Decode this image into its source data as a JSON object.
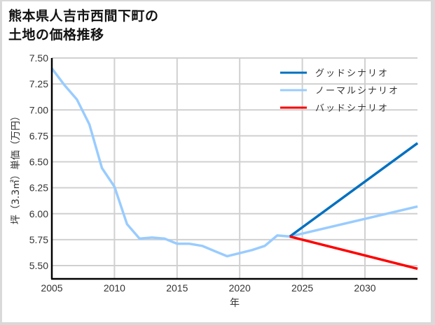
{
  "title_line1": "熊本県人吉市西間下町の",
  "title_line2": "土地の価格推移",
  "chart_data": {
    "type": "line",
    "title": "熊本県人吉市西間下町の土地の価格推移",
    "xlabel": "年",
    "ylabel": "坪（3.3㎡）単価（万円）",
    "xlim": [
      2005,
      2034.2
    ],
    "ylim": [
      5.37,
      7.5
    ],
    "grid": true,
    "legend_position": "upper right",
    "x_ticks": [
      "2005",
      "2010",
      "2015",
      "2020",
      "2025",
      "2030"
    ],
    "y_ticks": [
      "7.50",
      "7.25",
      "7.00",
      "6.75",
      "6.50",
      "6.25",
      "6.00",
      "5.75",
      "5.50"
    ],
    "series": [
      {
        "name": "ノーマルシナリオ",
        "color": "#99ccff",
        "x": [
          2005,
          2006,
          2007,
          2008,
          2009,
          2010,
          2011,
          2012,
          2013,
          2014,
          2015,
          2016,
          2017,
          2018,
          2019,
          2020,
          2021,
          2022,
          2023,
          2024,
          2034.2
        ],
        "values": [
          7.4,
          7.24,
          7.1,
          6.86,
          6.44,
          6.26,
          5.9,
          5.76,
          5.77,
          5.76,
          5.71,
          5.71,
          5.69,
          5.64,
          5.59,
          5.62,
          5.65,
          5.69,
          5.79,
          5.78,
          6.07
        ]
      },
      {
        "name": "グッドシナリオ",
        "color": "#0070c0",
        "x": [
          2024,
          2034.2
        ],
        "values": [
          5.78,
          6.68
        ]
      },
      {
        "name": "バッドシナリオ",
        "color": "#ff0000",
        "x": [
          2024,
          2034.2
        ],
        "values": [
          5.78,
          5.47
        ]
      }
    ]
  },
  "legend": [
    {
      "label": "グッドシナリオ",
      "color": "#0070c0"
    },
    {
      "label": "ノーマルシナリオ",
      "color": "#99ccff"
    },
    {
      "label": "バッドシナリオ",
      "color": "#ff0000"
    }
  ],
  "ylabel_parts": {
    "a": "坪",
    "b": "（3.3㎡）",
    "c": "単価",
    "d": "（万円）"
  }
}
